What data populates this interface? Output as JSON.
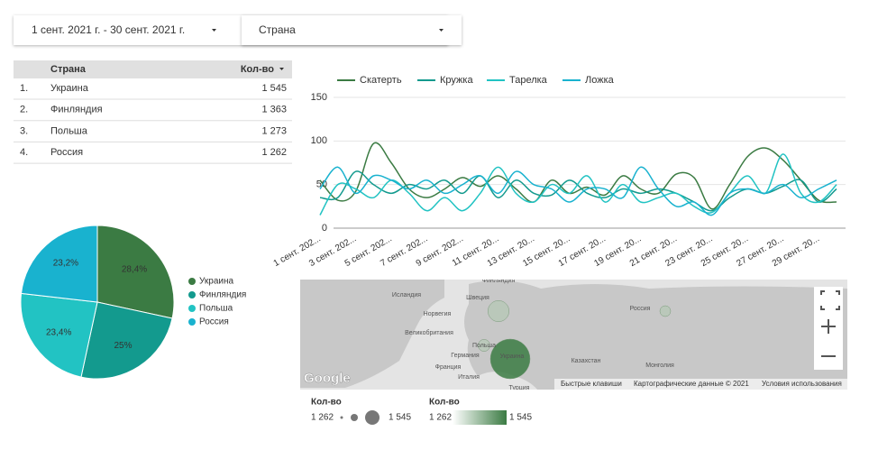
{
  "filters": [
    "1 сент. 2021 г. - 30 сент. 2021 г.",
    "Страна"
  ],
  "table": {
    "header": [
      "Страна",
      "Кол-во"
    ],
    "rows": [
      [
        "1.",
        "Украина",
        "1 545"
      ],
      [
        "2.",
        "Финляндия",
        "1 363"
      ],
      [
        "3.",
        "Польша",
        "1 273"
      ],
      [
        "4.",
        "Россия",
        "1 262"
      ]
    ]
  },
  "chart_data": [
    {
      "type": "pie",
      "categories": [
        "Украина",
        "Финляндия",
        "Польша",
        "Россия"
      ],
      "values": [
        28.4,
        25,
        23.4,
        23.2
      ],
      "value_labels": [
        "28,4%",
        "25%",
        "23,4%",
        "23,2%"
      ],
      "colors": [
        "#3b7b43",
        "#139a8e",
        "#22c3c3",
        "#19b2cf"
      ],
      "legend": "right"
    },
    {
      "type": "line",
      "categories": [
        "1 сент. 202...",
        null,
        "3 сент. 202...",
        null,
        "5 сент. 202...",
        null,
        "7 сент. 202...",
        null,
        "9 сент. 202...",
        null,
        "11 сент. 20...",
        null,
        "13 сент. 20...",
        null,
        "15 сент. 20...",
        null,
        "17 сент. 20...",
        null,
        "19 сент. 20...",
        null,
        "21 сент. 20...",
        null,
        "23 сент. 20...",
        null,
        "25 сент. 20...",
        null,
        "27 сент. 20...",
        null,
        "29 сент. 20...",
        null
      ],
      "series": [
        {
          "name": "Скатерть",
          "color": "#3b7b43",
          "values": [
            55,
            32,
            42,
            97,
            75,
            45,
            35,
            45,
            58,
            48,
            60,
            45,
            30,
            55,
            40,
            47,
            38,
            60,
            45,
            40,
            62,
            58,
            22,
            50,
            82,
            92,
            78,
            55,
            32,
            30
          ]
        },
        {
          "name": "Кружка",
          "color": "#139a8e",
          "values": [
            35,
            35,
            65,
            50,
            40,
            50,
            45,
            55,
            40,
            60,
            35,
            55,
            40,
            38,
            55,
            40,
            35,
            45,
            40,
            45,
            40,
            30,
            20,
            35,
            45,
            40,
            48,
            55,
            30,
            45
          ]
        },
        {
          "name": "Тарелка",
          "color": "#22c3c3",
          "values": [
            15,
            50,
            45,
            35,
            55,
            40,
            20,
            35,
            20,
            40,
            70,
            40,
            30,
            50,
            40,
            60,
            30,
            50,
            30,
            35,
            40,
            25,
            18,
            40,
            60,
            40,
            85,
            40,
            30,
            50
          ]
        },
        {
          "name": "Ложка",
          "color": "#19b2cf",
          "values": [
            45,
            70,
            40,
            60,
            55,
            45,
            55,
            40,
            50,
            60,
            40,
            65,
            50,
            45,
            30,
            45,
            45,
            35,
            70,
            45,
            25,
            30,
            15,
            40,
            45,
            40,
            50,
            35,
            45,
            55
          ]
        }
      ],
      "ylim": [
        0,
        150
      ],
      "yticks": [
        0,
        50,
        100,
        150
      ],
      "grid": true,
      "legend": "top"
    }
  ],
  "map": {
    "labels": [
      "Исландия",
      "Швеция",
      "Финляндия",
      "Норвегия",
      "Великобритания",
      "Польша",
      "Германия",
      "Украина",
      "Франция",
      "Италия",
      "Турция",
      "Казахстан",
      "Монголия",
      "Россия"
    ],
    "bubbles": [
      1545,
      1363,
      1273,
      1262
    ],
    "footer": [
      "Google",
      "Быстрые клавиши",
      "Картографические данные © 2021",
      "Условия использования"
    ],
    "legend": {
      "title": "Кол-во",
      "min": {
        "value": 1262,
        "label": "1 262"
      },
      "max": {
        "value": 1545,
        "label": "1 545"
      }
    }
  }
}
